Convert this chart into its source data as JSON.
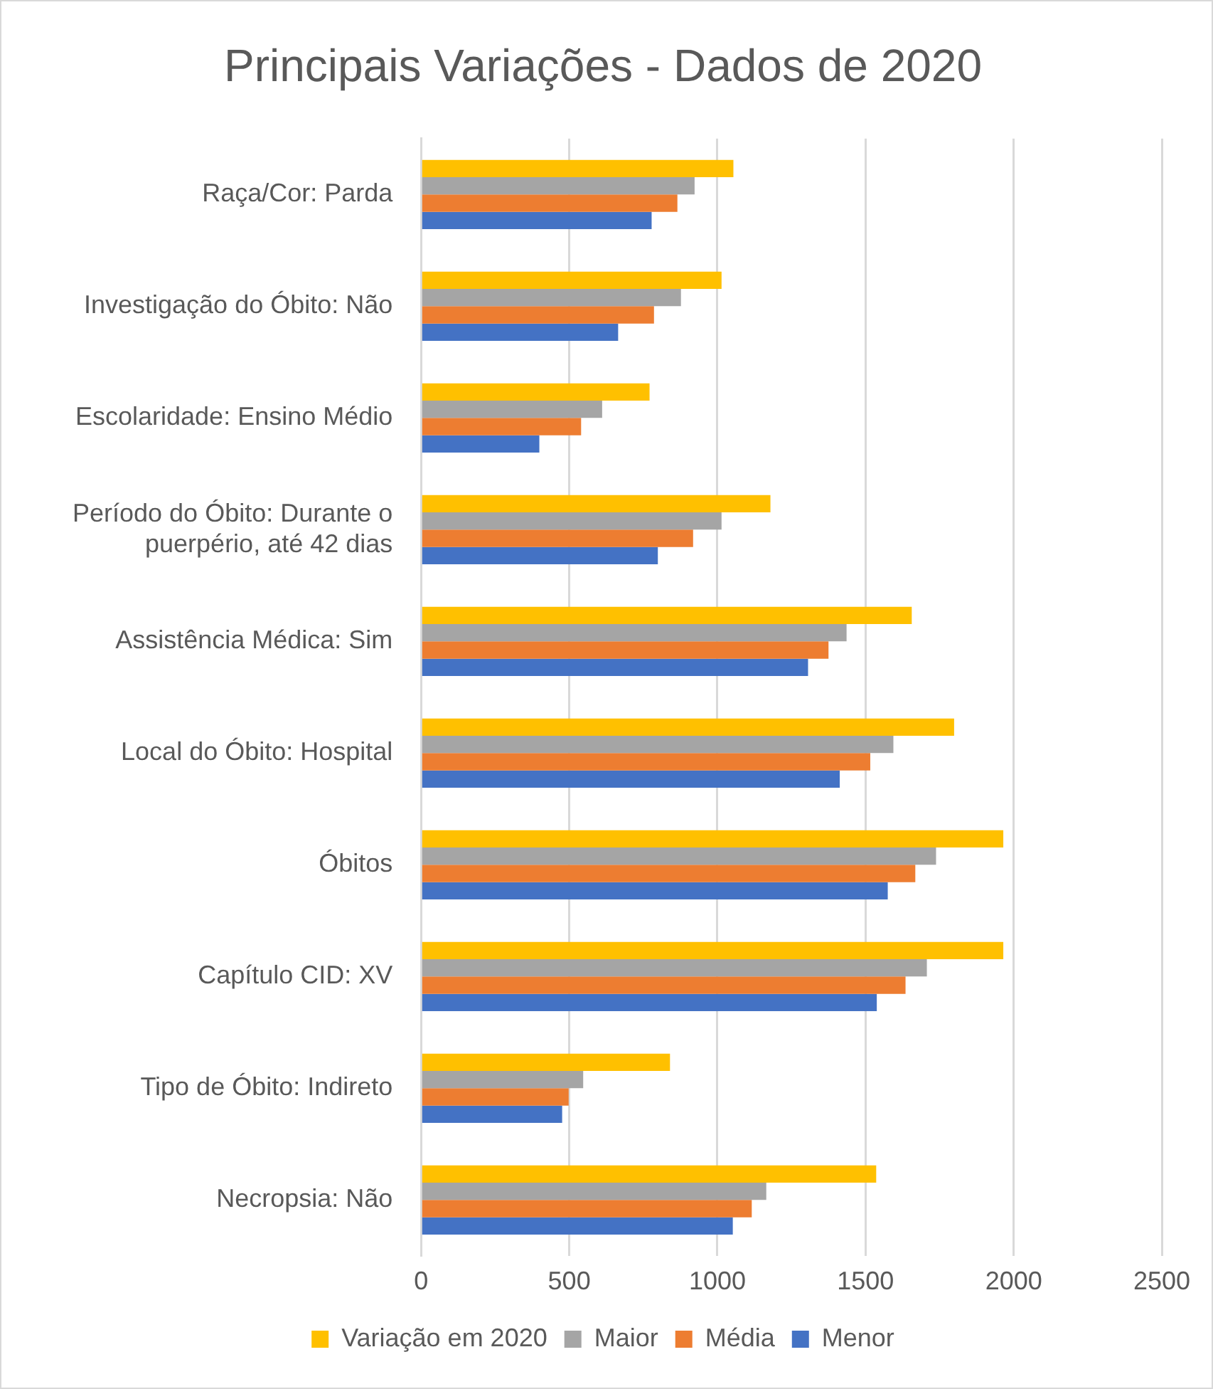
{
  "chart_data": {
    "type": "bar",
    "orientation": "horizontal",
    "title": "Principais Variações - Dados de 2020",
    "categories": [
      "Raça/Cor: Parda",
      "Investigação do Óbito: Não",
      "Escolaridade: Ensino Médio",
      "Período do Óbito: Durante o puerpério, até 42 dias",
      "Assistência Médica: Sim",
      "Local do Óbito: Hospital",
      "Óbitos",
      "Capítulo CID: XV",
      "Tipo de Óbito: Indireto",
      "Necropsia: Não"
    ],
    "series": [
      {
        "name": "Variação em 2020",
        "color": "#ffc000",
        "values": [
          1054,
          1014,
          771,
          1179,
          1656,
          1799,
          1965,
          1965,
          840,
          1536
        ]
      },
      {
        "name": "Maior",
        "color": "#a5a5a5",
        "values": [
          923,
          877,
          611,
          1014,
          1436,
          1594,
          1738,
          1707,
          547,
          1165
        ]
      },
      {
        "name": "Média",
        "color": "#ed7d31",
        "values": [
          865,
          786,
          540,
          918,
          1375,
          1516,
          1668,
          1635,
          498,
          1116
        ]
      },
      {
        "name": "Menor",
        "color": "#4472c4",
        "values": [
          778,
          665,
          399,
          799,
          1306,
          1413,
          1575,
          1538,
          476,
          1052
        ]
      }
    ],
    "xlim": [
      0,
      2500
    ],
    "xticks": [
      0,
      500,
      1000,
      1500,
      2000,
      2500
    ],
    "grid": "x",
    "legend": "bottom"
  }
}
